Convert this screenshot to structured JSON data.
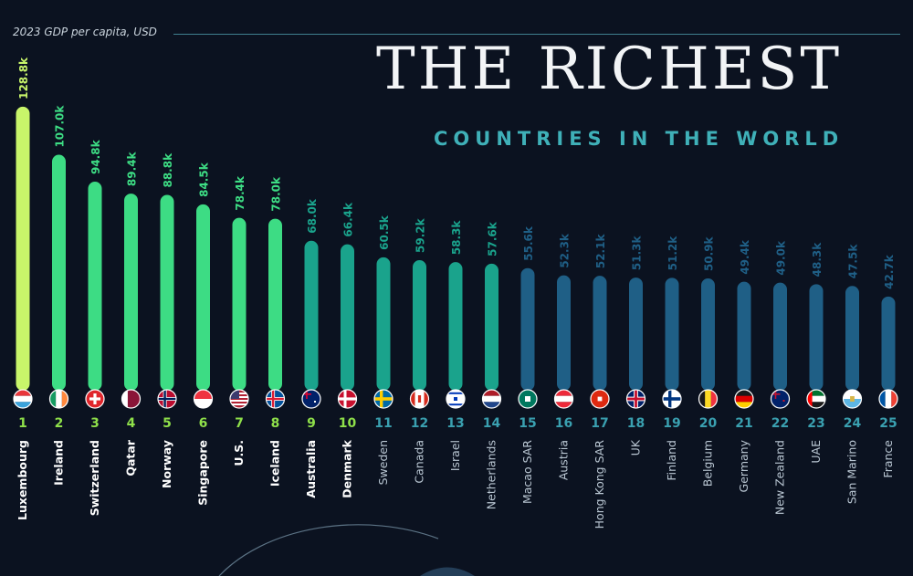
{
  "header": {
    "unit_label": "2023 GDP per capita, USD",
    "title": "THE RICHEST",
    "subtitle": "COUNTRIES IN THE WORLD"
  },
  "colors": {
    "background": "#0b1220",
    "bar_top_rank": "#c8f56a",
    "bar_high": "#3ddc84",
    "bar_mid": "#1aa38c",
    "bar_low": "#1f5f86",
    "rank_text_top": "#8fe04a",
    "rank_text_low": "#3aa0b0"
  },
  "chart_data": {
    "type": "bar",
    "title": "",
    "xlabel": "",
    "ylabel": "2023 GDP per capita, USD",
    "ylim": [
      0,
      130000
    ],
    "categories": [
      "Luxembourg",
      "Ireland",
      "Switzerland",
      "Qatar",
      "Norway",
      "Singapore",
      "U.S.",
      "Iceland",
      "Australia",
      "Denmark",
      "Sweden",
      "Canada",
      "Israel",
      "Netherlands",
      "Macao SAR",
      "Austria",
      "Hong Kong SAR",
      "UK",
      "Finland",
      "Belgium",
      "Germany",
      "New Zealand",
      "UAE",
      "San Marino",
      "France"
    ],
    "ranks": [
      "1",
      "2",
      "3",
      "4",
      "5",
      "6",
      "7",
      "8",
      "9",
      "10",
      "11",
      "12",
      "13",
      "14",
      "15",
      "16",
      "17",
      "18",
      "19",
      "20",
      "21",
      "22",
      "23",
      "24",
      "25"
    ],
    "values": [
      128800,
      107000,
      94800,
      89400,
      88800,
      84500,
      78400,
      78000,
      68000,
      66400,
      60500,
      59200,
      58300,
      57600,
      55600,
      52300,
      52100,
      51300,
      51200,
      50900,
      49400,
      49000,
      48300,
      47500,
      42700
    ],
    "value_labels": [
      "128.8k",
      "107.0k",
      "94.8k",
      "89.4k",
      "88.8k",
      "84.5k",
      "78.4k",
      "78.0k",
      "68.0k",
      "66.4k",
      "60.5k",
      "59.2k",
      "58.3k",
      "57.6k",
      "55.6k",
      "52.3k",
      "52.1k",
      "51.3k",
      "51.2k",
      "50.9k",
      "49.4k",
      "49.0k",
      "48.3k",
      "47.5k",
      "42.7k"
    ],
    "flag_icons": [
      "flag-luxembourg-icon",
      "flag-ireland-icon",
      "flag-switzerland-icon",
      "flag-qatar-icon",
      "flag-norway-icon",
      "flag-singapore-icon",
      "flag-us-icon",
      "flag-iceland-icon",
      "flag-australia-icon",
      "flag-denmark-icon",
      "flag-sweden-icon",
      "flag-canada-icon",
      "flag-israel-icon",
      "flag-netherlands-icon",
      "flag-macao-icon",
      "flag-austria-icon",
      "flag-hong-kong-icon",
      "flag-uk-icon",
      "flag-finland-icon",
      "flag-belgium-icon",
      "flag-germany-icon",
      "flag-new-zealand-icon",
      "flag-uae-icon",
      "flag-san-marino-icon",
      "flag-france-icon"
    ]
  }
}
